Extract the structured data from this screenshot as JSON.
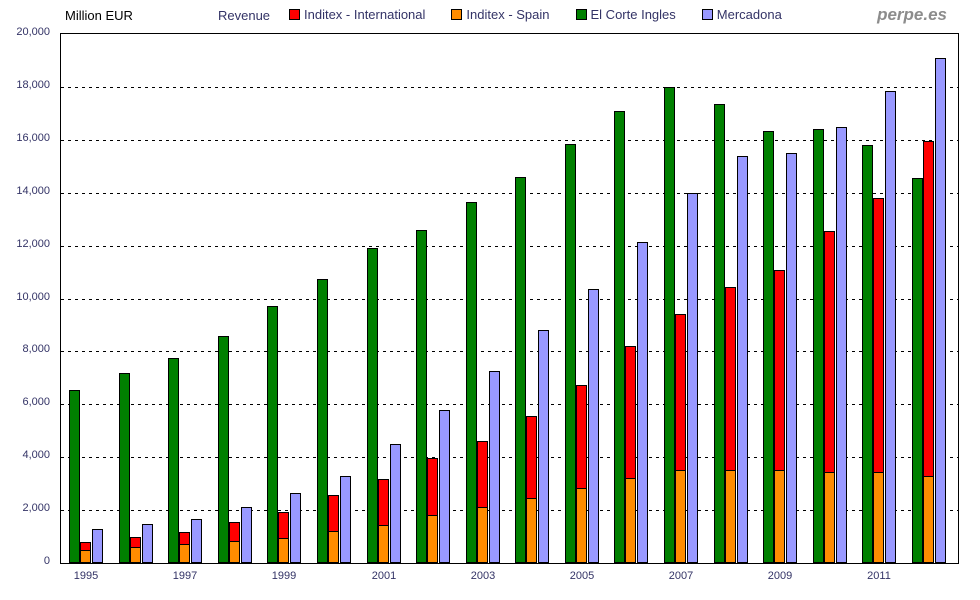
{
  "header": {
    "y_axis_title": "Million EUR",
    "chart_title": "Revenue",
    "watermark": "perpe.es"
  },
  "legend": [
    {
      "label": "Inditex - International",
      "color": "#FF0000"
    },
    {
      "label": "Inditex - Spain",
      "color": "#FF8C00"
    },
    {
      "label": "El Corte Ingles",
      "color": "#008000"
    },
    {
      "label": "Mercadona",
      "color": "#9999FF"
    }
  ],
  "colors": {
    "inditex_international": "#FF0000",
    "inditex_spain": "#FF8C00",
    "el_corte_ingles": "#008000",
    "mercadona": "#9999FF",
    "axis_text": "#333366",
    "grid": "#000000",
    "watermark": "#8C8C8C"
  },
  "chart_data": {
    "type": "bar",
    "title": "Revenue",
    "unit": "Million EUR",
    "ylabel": "Million EUR",
    "ylim": [
      0,
      20000
    ],
    "y_tick_step": 2000,
    "grid": "horizontal-dashed",
    "legend_position": "top",
    "categories": [
      "1995",
      "1996",
      "1997",
      "1998",
      "1999",
      "2000",
      "2001",
      "2002",
      "2003",
      "2004",
      "2005",
      "2006",
      "2007",
      "2008",
      "2009",
      "2010",
      "2011",
      "2012"
    ],
    "series": [
      {
        "name": "Inditex - Spain",
        "color": "#FF8C00",
        "stack": "inditex",
        "values": [
          500,
          600,
          700,
          820,
          960,
          1200,
          1450,
          1800,
          2100,
          2450,
          2850,
          3200,
          3500,
          3500,
          3500,
          3450,
          3450,
          3300
        ]
      },
      {
        "name": "Inditex - International",
        "color": "#FF0000",
        "stack": "inditex",
        "values": [
          290,
          360,
          450,
          730,
          1000,
          1350,
          1750,
          2150,
          2500,
          3100,
          3900,
          5000,
          5900,
          6900,
          7550,
          9100,
          10350,
          12650
        ]
      },
      {
        "name": "El Corte Ingles",
        "color": "#008000",
        "stack": null,
        "values": [
          6550,
          7200,
          7750,
          8600,
          9700,
          10750,
          11900,
          12600,
          13650,
          14600,
          15850,
          17100,
          18000,
          17350,
          16350,
          16400,
          15800,
          14550
        ]
      },
      {
        "name": "Mercadona",
        "color": "#9999FF",
        "stack": null,
        "values": [
          1300,
          1470,
          1670,
          2130,
          2650,
          3300,
          4500,
          5800,
          7250,
          8800,
          10350,
          12150,
          13980,
          15380,
          15500,
          16500,
          17830,
          19080
        ]
      }
    ],
    "y_tick_labels": [
      "0",
      "2,000",
      "4,000",
      "6,000",
      "8,000",
      "10,000",
      "12,000",
      "14,000",
      "16,000",
      "18,000",
      "20,000"
    ],
    "x_tick_labels": [
      "1995",
      "1997",
      "1999",
      "2001",
      "2003",
      "2005",
      "2007",
      "2009",
      "2011"
    ]
  }
}
